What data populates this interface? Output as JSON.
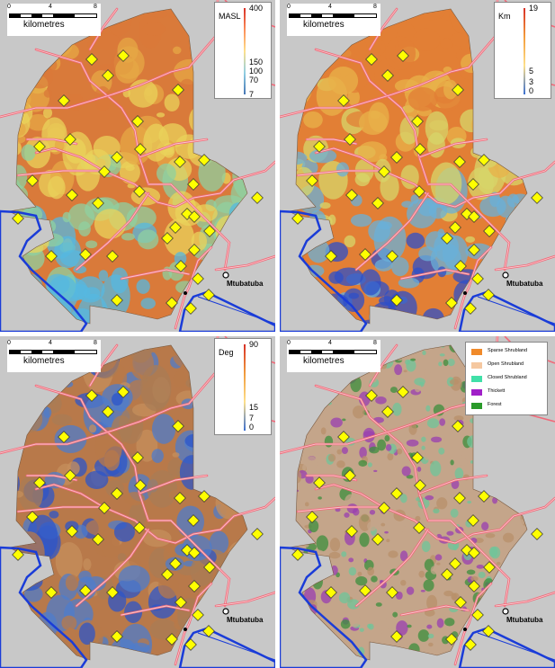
{
  "scale": {
    "ticks": [
      "0",
      "4",
      "8"
    ],
    "unit": "kilometres"
  },
  "town": "Mtubatuba",
  "panels": [
    {
      "id": "elevation",
      "legend_title": "MASL",
      "legend_ticks": [
        "400",
        "150",
        "100",
        "70",
        "7"
      ],
      "ramp_colors": [
        "#d73027",
        "#fc8d59",
        "#fee08b",
        "#91cfe3",
        "#4575b4"
      ],
      "fill_colors": [
        "#d97a3a",
        "#e5a845",
        "#e9d35b",
        "#8fd0a0",
        "#55b8e0"
      ]
    },
    {
      "id": "distance",
      "legend_title": "Km",
      "legend_ticks": [
        "19",
        "5",
        "3",
        "0"
      ],
      "ramp_colors": [
        "#d73027",
        "#f39c3c",
        "#fee08b",
        "#3a6fd0"
      ],
      "fill_colors": [
        "#e27f35",
        "#e8b24a",
        "#d7d66a",
        "#6ab0d8",
        "#2d4fc8"
      ]
    },
    {
      "id": "slope",
      "legend_title": "Deg",
      "legend_ticks": [
        "90",
        "15",
        "7",
        "0"
      ],
      "ramp_colors": [
        "#d73027",
        "#f09a3c",
        "#fee08b",
        "#3a6fd0"
      ],
      "fill_colors": [
        "#b8794a",
        "#c58f5c",
        "#a97c56",
        "#4f7ccb",
        "#2d55c8"
      ]
    },
    {
      "id": "vegetation",
      "legend_items": [
        {
          "label": "Sparse Shrubland",
          "color": "#f08a2a"
        },
        {
          "label": "Open Shrubland",
          "color": "#f5c8a0"
        },
        {
          "label": "Closed Shrubland",
          "color": "#40e0a8"
        },
        {
          "label": "Thickett",
          "color": "#a020c8"
        },
        {
          "label": "Forest",
          "color": "#2a9a2a"
        }
      ],
      "fill_colors": [
        "#c4a58a",
        "#b8906a",
        "#6fc59a",
        "#9a3fb0",
        "#3c8f3c"
      ]
    }
  ],
  "colors": {
    "background": "#c8c8c8",
    "roads": "#f06a7a",
    "road_inner": "#f8c8cc",
    "water": "#1a3cd8",
    "site_marker": "#ffff00"
  }
}
